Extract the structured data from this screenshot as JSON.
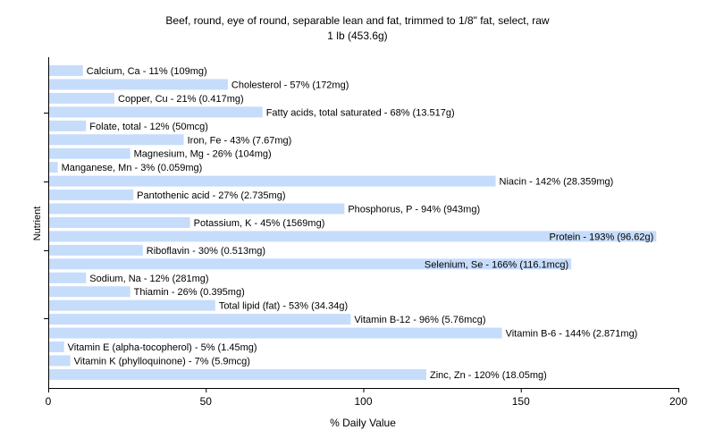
{
  "chart_data": {
    "type": "bar",
    "orientation": "horizontal",
    "title": "Beef, round, eye of round, separable lean and fat, trimmed to 1/8\" fat, select, raw",
    "subtitle": "1 lb (453.6g)",
    "xlabel": "% Daily Value",
    "ylabel": "Nutrient",
    "xlim": [
      0,
      200
    ],
    "xticks": [
      "0",
      "50",
      "100",
      "150",
      "200"
    ],
    "grid": false,
    "bar_color": "#c6dcfb",
    "categories": [
      "Calcium, Ca",
      "Cholesterol",
      "Copper, Cu",
      "Fatty acids, total saturated",
      "Folate, total",
      "Iron, Fe",
      "Magnesium, Mg",
      "Manganese, Mn",
      "Niacin",
      "Pantothenic acid",
      "Phosphorus, P",
      "Potassium, K",
      "Protein",
      "Riboflavin",
      "Selenium, Se",
      "Sodium, Na",
      "Thiamin",
      "Total lipid (fat)",
      "Vitamin B-12",
      "Vitamin B-6",
      "Vitamin E (alpha-tocopherol)",
      "Vitamin K (phylloquinone)",
      "Zinc, Zn"
    ],
    "values": [
      11,
      57,
      21,
      68,
      12,
      43,
      26,
      3,
      142,
      27,
      94,
      45,
      193,
      30,
      166,
      12,
      26,
      53,
      96,
      144,
      5,
      7,
      120
    ],
    "labels": [
      "Calcium, Ca - 11% (109mg)",
      "Cholesterol - 57% (172mg)",
      "Copper, Cu - 21% (0.417mg)",
      "Fatty acids, total saturated - 68% (13.517g)",
      "Folate, total - 12% (50mcg)",
      "Iron, Fe - 43% (7.67mg)",
      "Magnesium, Mg - 26% (104mg)",
      "Manganese, Mn - 3% (0.059mg)",
      "Niacin - 142% (28.359mg)",
      "Pantothenic acid - 27% (2.735mg)",
      "Phosphorus, P - 94% (943mg)",
      "Potassium, K - 45% (1569mg)",
      "Protein - 193% (96.62g)",
      "Riboflavin - 30% (0.513mg)",
      "Selenium, Se - 166% (116.1mcg)",
      "Sodium, Na - 12% (281mg)",
      "Thiamin - 26% (0.395mg)",
      "Total lipid (fat) - 53% (34.34g)",
      "Vitamin B-12 - 96% (5.76mcg)",
      "Vitamin B-6 - 144% (2.871mg)",
      "Vitamin E (alpha-tocopherol) - 5% (1.45mg)",
      "Vitamin K (phylloquinone) - 7% (5.9mcg)",
      "Zinc, Zn - 120% (18.05mg)"
    ]
  }
}
